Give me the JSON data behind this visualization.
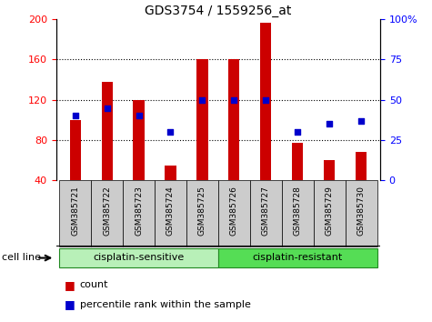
{
  "title": "GDS3754 / 1559256_at",
  "samples": [
    "GSM385721",
    "GSM385722",
    "GSM385723",
    "GSM385724",
    "GSM385725",
    "GSM385726",
    "GSM385727",
    "GSM385728",
    "GSM385729",
    "GSM385730"
  ],
  "count_values": [
    100,
    138,
    120,
    55,
    160,
    160,
    197,
    77,
    60,
    68
  ],
  "percentile_values": [
    40,
    45,
    40,
    30,
    50,
    50,
    50,
    30,
    35,
    37
  ],
  "bar_bottom": 40,
  "ylim_left": [
    40,
    200
  ],
  "ylim_right": [
    0,
    100
  ],
  "yticks_left": [
    40,
    80,
    120,
    160,
    200
  ],
  "yticks_right": [
    0,
    25,
    50,
    75,
    100
  ],
  "bar_color": "#cc0000",
  "dot_color": "#0000cc",
  "groups": [
    {
      "label": "cisplatin-sensitive",
      "indices": [
        0,
        1,
        2,
        3,
        4
      ],
      "color": "#b8f0b8"
    },
    {
      "label": "cisplatin-resistant",
      "indices": [
        5,
        6,
        7,
        8,
        9
      ],
      "color": "#55dd55"
    }
  ],
  "cell_line_label": "cell line",
  "legend_count_label": "count",
  "legend_percentile_label": "percentile rank within the sample",
  "background_color": "#ffffff",
  "plot_bg_color": "#ffffff",
  "tick_area_color": "#cccccc",
  "bar_width": 0.35
}
